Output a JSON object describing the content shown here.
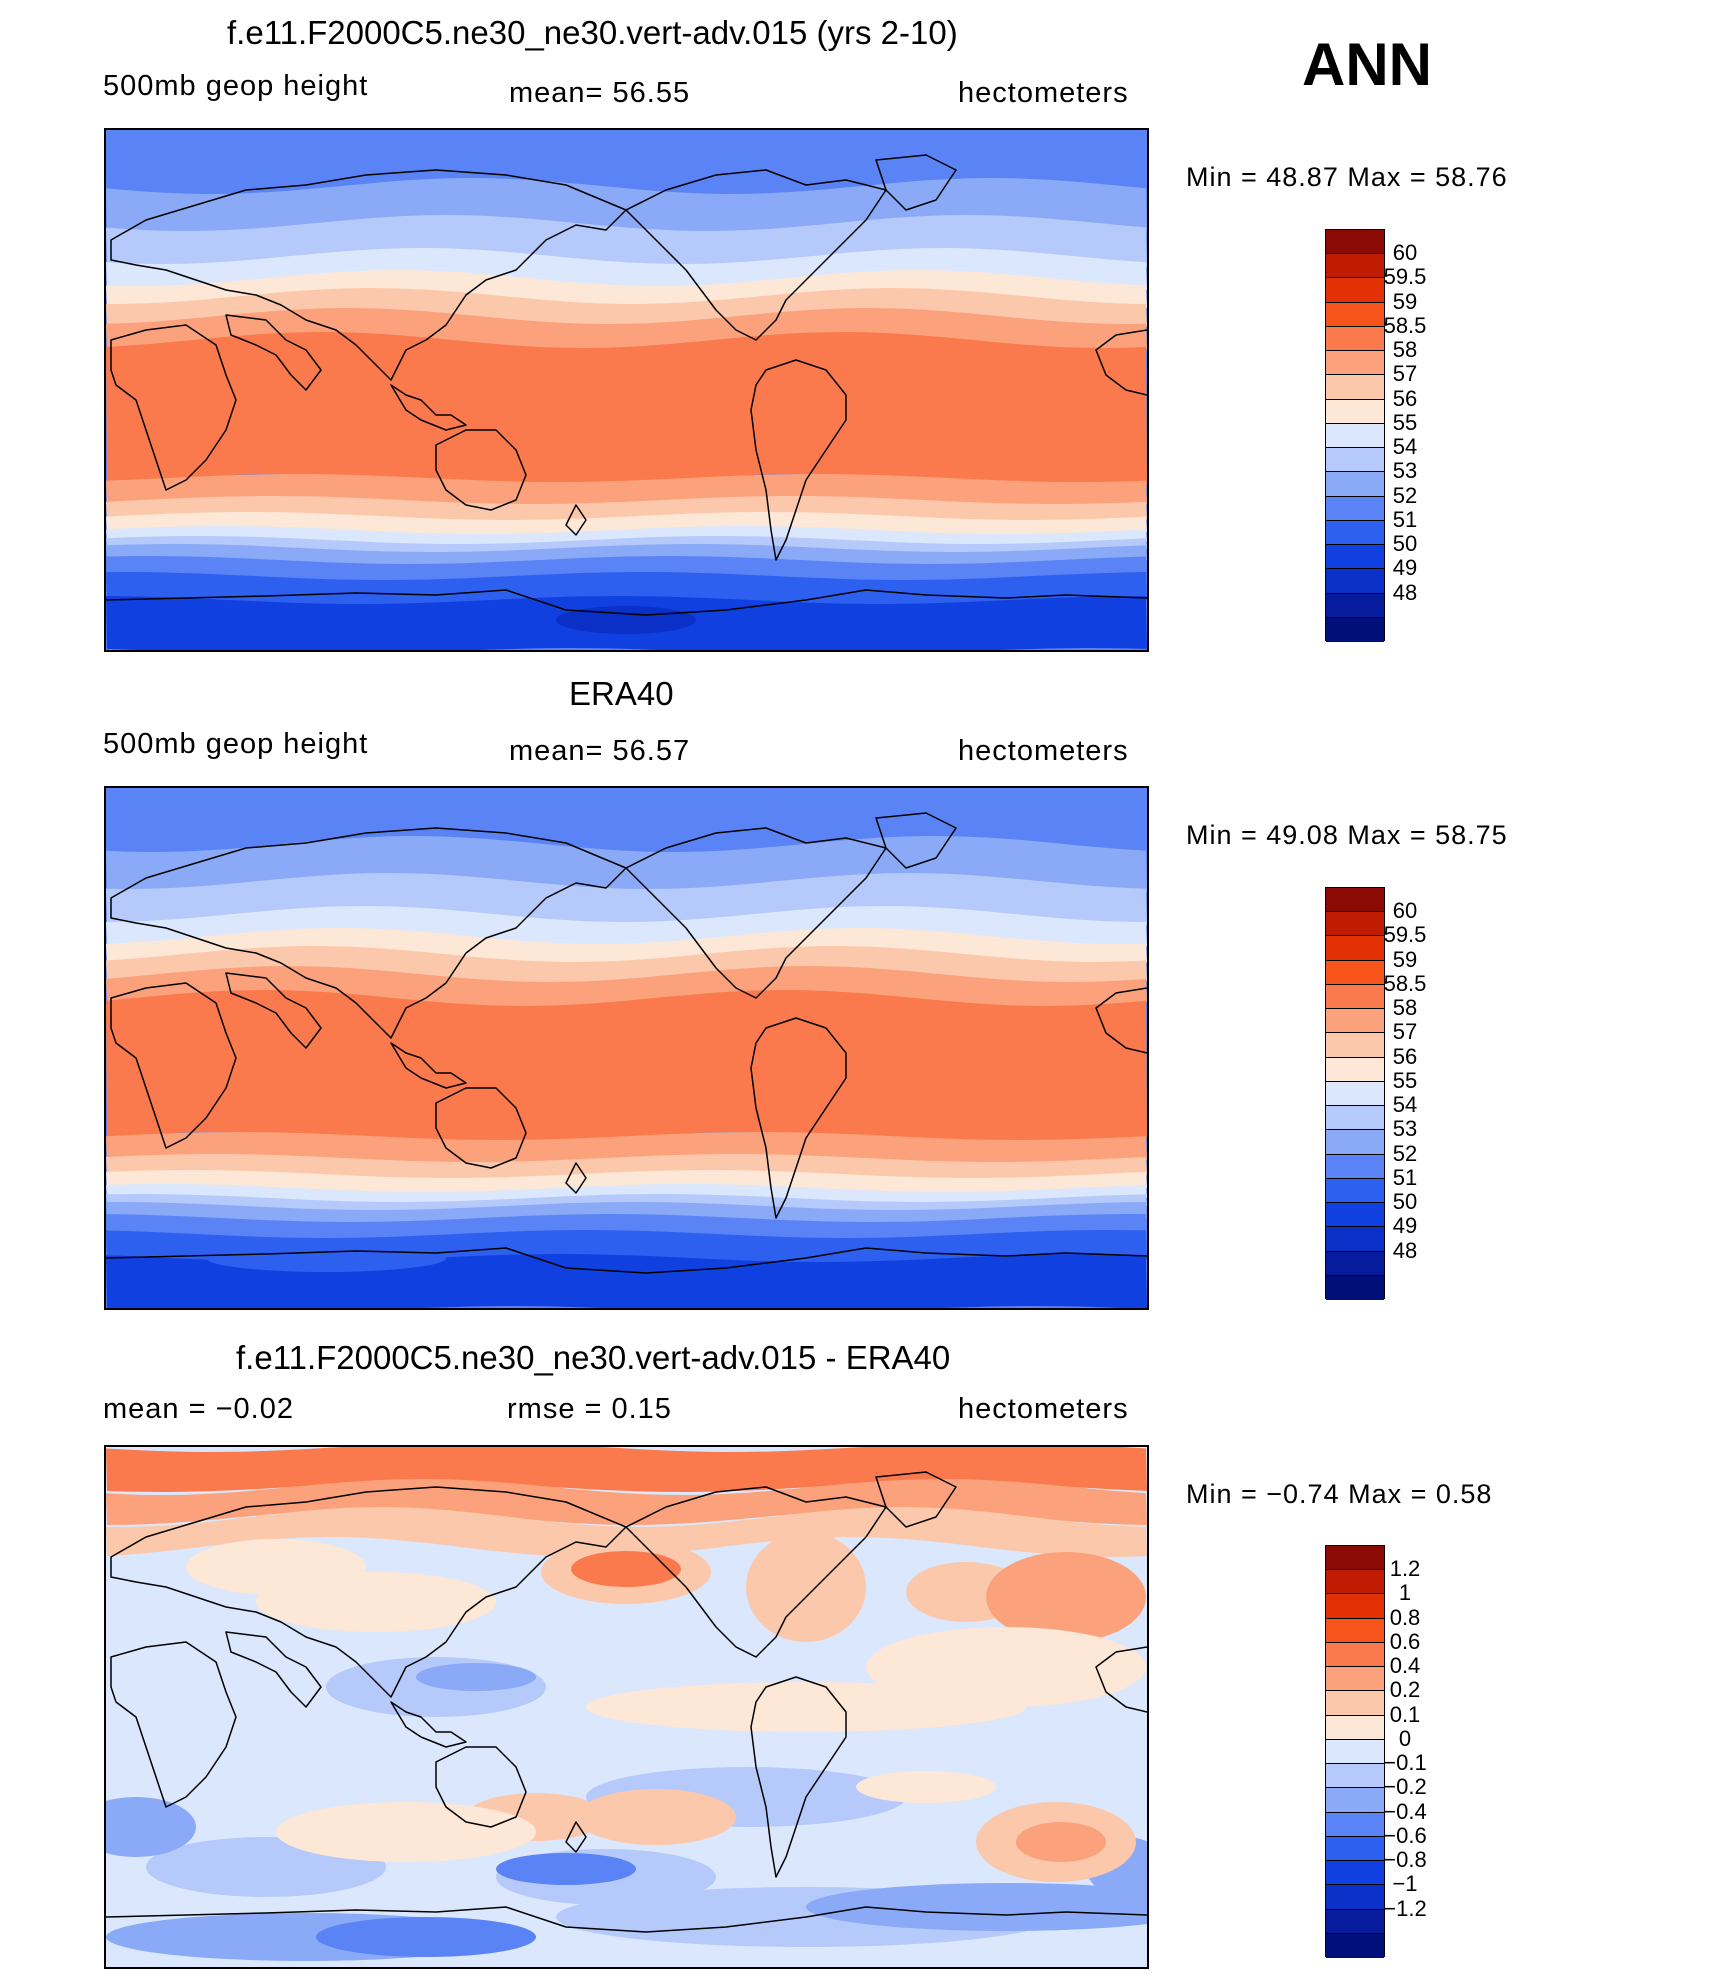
{
  "season": "ANN",
  "colors": {
    "absolute": [
      "#000f7a",
      "#061c9c",
      "#0a30c7",
      "#1040e0",
      "#2e60f0",
      "#5a84f5",
      "#8aaaf7",
      "#b5cafa",
      "#dae7fc",
      "#fde7d6",
      "#fcc8ac",
      "#fba27c",
      "#fb7a4d",
      "#f7541c",
      "#e33106",
      "#bf1c03",
      "#8c0a04"
    ],
    "difference": [
      "#000f7a",
      "#061c9c",
      "#0a30c7",
      "#1040e0",
      "#2e60f0",
      "#5a84f5",
      "#8aaaf7",
      "#b5cafa",
      "#dae7fc",
      "#fde7d6",
      "#fcc8ac",
      "#fba27c",
      "#fb7a4d",
      "#f7541c",
      "#e33106",
      "#bf1c03",
      "#8c0a04"
    ]
  },
  "panels": [
    {
      "title": "f.e11.F2000C5.ne30_ne30.vert-adv.015 (yrs 2-10)",
      "variable": "500mb  geop  height",
      "stat": "mean=   56.55",
      "stat2": "",
      "units": "hectometers",
      "minmax": "Min  =    48.87  Max  =    58.76",
      "map_kind": "model",
      "levels": [
        "60",
        "59.5",
        "59",
        "58.5",
        "58",
        "57",
        "56",
        "55",
        "54",
        "53",
        "52",
        "51",
        "50",
        "49",
        "48"
      ]
    },
    {
      "title": "ERA40",
      "variable": "500mb  geop  height",
      "stat": "mean=   56.57",
      "stat2": "",
      "units": "hectometers",
      "minmax": "Min  =    49.08  Max  =    58.75",
      "map_kind": "obs",
      "levels": [
        "60",
        "59.5",
        "59",
        "58.5",
        "58",
        "57",
        "56",
        "55",
        "54",
        "53",
        "52",
        "51",
        "50",
        "49",
        "48"
      ]
    },
    {
      "title": "f.e11.F2000C5.ne30_ne30.vert-adv.015 - ERA40",
      "variable": "mean  =    −0.02",
      "stat": "rmse  =     0.15",
      "stat2": "",
      "units": "hectometers",
      "minmax": "Min  =   −0.74  Max  =     0.58",
      "map_kind": "diff",
      "levels": [
        "1.2",
        "1",
        "0.8",
        "0.6",
        "0.4",
        "0.2",
        "0.1",
        "0",
        "−0.1",
        "−0.2",
        "−0.4",
        "−0.6",
        "−0.8",
        "−1",
        "−1.2"
      ]
    }
  ]
}
